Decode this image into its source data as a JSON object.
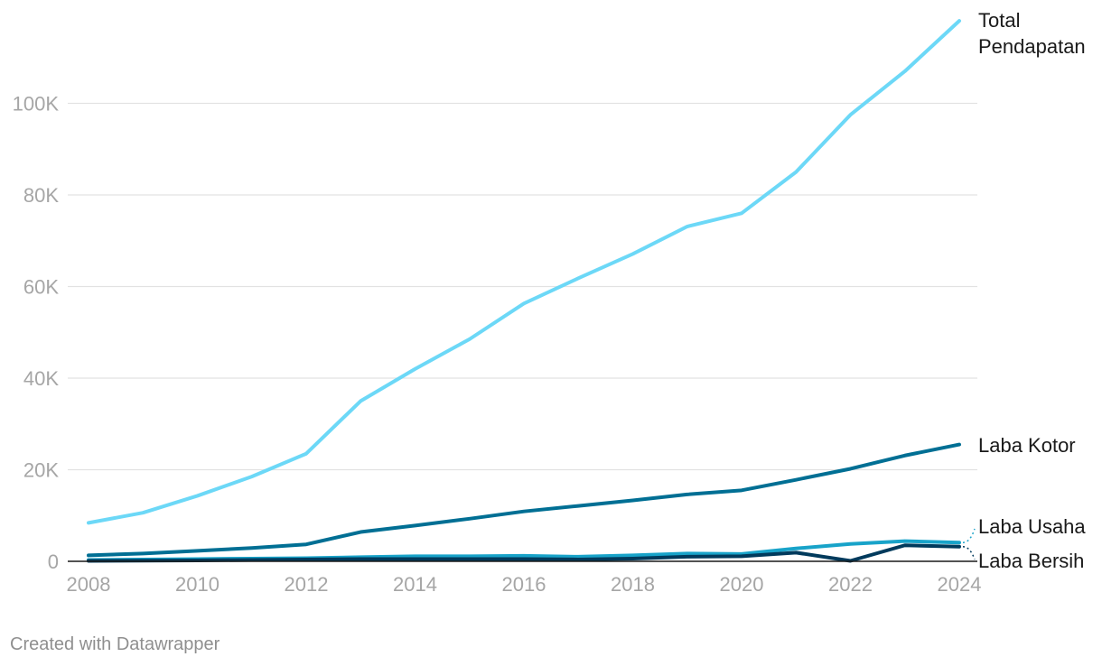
{
  "chart_data": {
    "type": "line",
    "x": [
      2008,
      2009,
      2010,
      2011,
      2012,
      2013,
      2014,
      2015,
      2016,
      2017,
      2018,
      2019,
      2020,
      2021,
      2022,
      2023,
      2024
    ],
    "x_tick_labels": [
      "2008",
      "2010",
      "2012",
      "2014",
      "2016",
      "2018",
      "2020",
      "2022",
      "2024"
    ],
    "y_ticks": [
      0,
      20000,
      40000,
      60000,
      80000,
      100000
    ],
    "y_tick_labels": [
      "0",
      "20K",
      "40K",
      "60K",
      "80K",
      "100K"
    ],
    "ylim": [
      0,
      120000
    ],
    "xlim": [
      2008,
      2024
    ],
    "grid": "horizontal",
    "series": [
      {
        "name": "Total Pendapatan",
        "label_lines": [
          "Total",
          "Pendapatan"
        ],
        "color": "#6cd8f7",
        "values": [
          8400,
          10600,
          14300,
          18500,
          23500,
          35000,
          42000,
          48500,
          56300,
          61800,
          67100,
          73100,
          76000,
          85000,
          97500,
          107000,
          118000
        ]
      },
      {
        "name": "Laba Kotor",
        "label_lines": [
          "Laba Kotor"
        ],
        "color": "#006f94",
        "values": [
          1300,
          1700,
          2300,
          2900,
          3700,
          6400,
          7800,
          9300,
          10900,
          12100,
          13300,
          14600,
          15500,
          17800,
          20200,
          23100,
          25500
        ]
      },
      {
        "name": "Laba Usaha",
        "label_lines": [
          "Laba Usaha"
        ],
        "color": "#18a3c9",
        "values": [
          300,
          400,
          500,
          600,
          700,
          900,
          1100,
          1100,
          1200,
          1000,
          1300,
          1700,
          1600,
          2800,
          3800,
          4400,
          4100
        ]
      },
      {
        "name": "Laba Bersih",
        "label_lines": [
          "Laba Bersih"
        ],
        "color": "#003a5c",
        "values": [
          100,
          150,
          200,
          300,
          400,
          500,
          500,
          500,
          500,
          400,
          600,
          1000,
          1100,
          1900,
          100,
          3500,
          3200
        ]
      }
    ]
  },
  "footer": {
    "credit": "Created with Datawrapper"
  }
}
